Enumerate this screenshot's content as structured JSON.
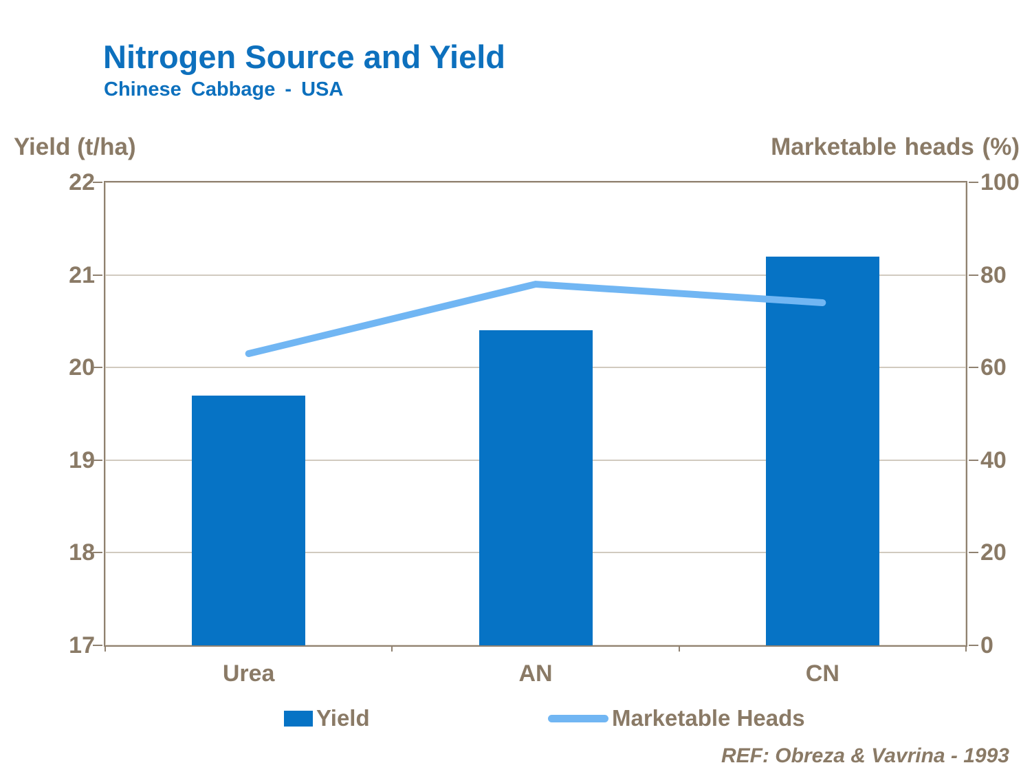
{
  "header": {
    "title": "Nitrogen Source and Yield",
    "subtitle": "Chinese Cabbage - USA"
  },
  "axes": {
    "left_title": "Yield (t/ha)",
    "right_title": "Marketable heads (%)"
  },
  "chart_data": {
    "type": "bar",
    "title": "Nitrogen Source and Yield",
    "subtitle": "Chinese Cabbage - USA",
    "categories": [
      "Urea",
      "AN",
      "CN"
    ],
    "series": [
      {
        "name": "Yield",
        "type": "bar",
        "axis": "left",
        "values": [
          19.7,
          20.4,
          21.2
        ],
        "color": "#0673c5"
      },
      {
        "name": "Marketable Heads",
        "type": "line",
        "axis": "right",
        "values": [
          63,
          78,
          74
        ],
        "color": "#71b6f3"
      }
    ],
    "left_axis": {
      "label": "Yield (t/ha)",
      "range": [
        17,
        22
      ],
      "ticks": [
        22,
        21,
        20,
        19,
        18,
        17
      ]
    },
    "right_axis": {
      "label": "Marketable heads (%)",
      "range": [
        0,
        100
      ],
      "ticks": [
        100,
        80,
        60,
        40,
        20,
        0
      ]
    },
    "grid": true,
    "legend_position": "bottom"
  },
  "legend": {
    "items": [
      {
        "label": "Yield",
        "marker": "rect",
        "color": "#0673c5"
      },
      {
        "label": "Marketable Heads",
        "marker": "line",
        "color": "#71b6f3"
      }
    ]
  },
  "footer": {
    "reference": "REF: Obreza & Vavrina - 1993"
  },
  "colors": {
    "title_blue": "#0d70bd",
    "bar_blue": "#0673c5",
    "line_blue": "#71b6f3",
    "text_taupe": "#8a7a66",
    "axis_border": "#8f8170",
    "gridline": "#d1cabf",
    "background": "#ffffff"
  }
}
